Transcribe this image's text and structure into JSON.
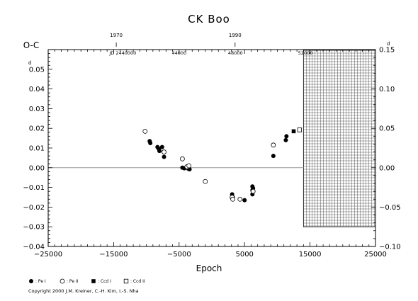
{
  "chart_data": {
    "type": "scatter",
    "title": "CK Boo",
    "ylabel": "O-C",
    "xlabel": "Epoch",
    "xlim": [
      -25000,
      25000
    ],
    "ylim": [
      -0.04,
      0.06
    ],
    "x_ticks": [
      {
        "value": -25000,
        "label": "−25000"
      },
      {
        "value": -15000,
        "label": "−15000"
      },
      {
        "value": -5000,
        "label": "−5000"
      },
      {
        "value": 5000,
        "label": "5000"
      },
      {
        "value": 15000,
        "label": "15000"
      },
      {
        "value": 25000,
        "label": "25000"
      }
    ],
    "y_ticks": [
      {
        "value": -0.04,
        "label": "−0.04"
      },
      {
        "value": -0.03,
        "label": "−0.03"
      },
      {
        "value": -0.02,
        "label": "−0.02"
      },
      {
        "value": -0.01,
        "label": "−0.01"
      },
      {
        "value": 0.0,
        "label": "0.00"
      },
      {
        "value": 0.01,
        "label": "0.01"
      },
      {
        "value": 0.02,
        "label": "0.02"
      },
      {
        "value": 0.03,
        "label": "0.03"
      },
      {
        "value": 0.04,
        "label": "0.04"
      },
      {
        "value": 0.05,
        "label": "0.05"
      }
    ],
    "y_unit_label": "d",
    "right_axis": {
      "ylim": [
        -0.1,
        0.15
      ],
      "ticks": [
        {
          "value": -0.1,
          "label": "−0.10"
        },
        {
          "value": -0.05,
          "label": "−0.05"
        },
        {
          "value": 0.0,
          "label": "0.00"
        },
        {
          "value": 0.05,
          "label": "0.05"
        },
        {
          "value": 0.1,
          "label": "0.10"
        },
        {
          "value": 0.15,
          "label": "0.15"
        }
      ],
      "unit_label": "d"
    },
    "top_axis_years": [
      {
        "epoch": -14600,
        "label": "1970"
      },
      {
        "epoch": 3550,
        "label": "1990"
      }
    ],
    "top_axis_jd": [
      {
        "epoch": -13600,
        "label": "JD 2440000"
      },
      {
        "epoch": -5000,
        "label": "44000"
      },
      {
        "epoch": 3600,
        "label": "48000"
      },
      {
        "epoch": 14300,
        "label": "52000"
      }
    ],
    "hatched_region_x": [
      14000,
      25000
    ],
    "zero_line": true,
    "series": [
      {
        "name": "Pe I",
        "marker": "filled-circle",
        "points": [
          [
            -9500,
            0.0135
          ],
          [
            -9400,
            0.0125
          ],
          [
            -8300,
            0.0105
          ],
          [
            -8100,
            0.0095
          ],
          [
            -8000,
            0.0085
          ],
          [
            -7600,
            0.0105
          ],
          [
            -7300,
            0.0055
          ],
          [
            -4500,
            0.0
          ],
          [
            -4200,
            -0.0003
          ],
          [
            -3600,
            -0.0005
          ],
          [
            -3400,
            -0.0008
          ],
          [
            3100,
            -0.0135
          ],
          [
            3200,
            -0.015
          ],
          [
            5000,
            -0.0165
          ],
          [
            6200,
            -0.0095
          ],
          [
            6200,
            -0.0115
          ],
          [
            6200,
            -0.0135
          ],
          [
            6300,
            -0.0105
          ],
          [
            9400,
            0.006
          ],
          [
            11300,
            0.014
          ],
          [
            11400,
            0.016
          ]
        ]
      },
      {
        "name": "Pe II",
        "marker": "open-circle",
        "points": [
          [
            -10200,
            0.0185
          ],
          [
            -7300,
            0.008
          ],
          [
            -4500,
            0.0045
          ],
          [
            -3800,
            0.0005
          ],
          [
            -3500,
            0.001
          ],
          [
            -1000,
            -0.007
          ],
          [
            3100,
            -0.015
          ],
          [
            3200,
            -0.016
          ],
          [
            4300,
            -0.016
          ],
          [
            6300,
            -0.012
          ],
          [
            9400,
            0.0115
          ]
        ]
      },
      {
        "name": "Ccd I",
        "marker": "filled-square",
        "points": [
          [
            12500,
            0.0185
          ]
        ]
      },
      {
        "name": "Ccd II",
        "marker": "open-square",
        "points": [
          [
            13400,
            0.0192
          ]
        ]
      }
    ],
    "legend": [
      {
        "marker": "filled-circle",
        "label": ": Pe I"
      },
      {
        "marker": "open-circle",
        "label": ": Pe II"
      },
      {
        "marker": "filled-square",
        "label": ": Ccd I"
      },
      {
        "marker": "open-square",
        "label": ": Ccd II"
      }
    ]
  },
  "copyright": "Copyright 2000 J.M. Kreiner, C.-H. Kim, I.-S. Nha"
}
